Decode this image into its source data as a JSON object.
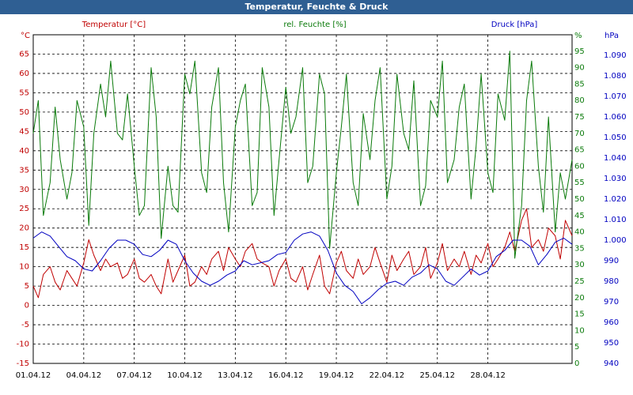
{
  "window": {
    "title": "Temperatur, Feuchte & Druck"
  },
  "colors": {
    "temperature": "#c00000",
    "humidity": "#0a7a0a",
    "pressure": "#0000c0",
    "titlebar": "#2f5f93"
  },
  "chart_data": {
    "type": "line",
    "title": "Temperatur, Feuchte & Druck",
    "grid": true,
    "axes": {
      "x": {
        "ticks": [
          "01.04.12",
          "04.04.12",
          "07.04.12",
          "10.04.12",
          "13.04.12",
          "16.04.12",
          "19.04.12",
          "22.04.12",
          "25.04.12",
          "28.04.12"
        ],
        "xlim": [
          0,
          32
        ]
      },
      "y_temperature": {
        "title": "Temperatur [°C]",
        "unit": "°C",
        "ylim": [
          -15,
          70
        ],
        "ticks": [
          "-15",
          "-10",
          "-5",
          "0",
          "5",
          "10",
          "15",
          "20",
          "25",
          "30",
          "35",
          "40",
          "45",
          "50",
          "55",
          "60",
          "65"
        ]
      },
      "y_humidity": {
        "title": "rel. Feuchte [%]",
        "unit": "%",
        "ylim": [
          0,
          100
        ],
        "ticks": [
          "0",
          "5",
          "10",
          "15",
          "20",
          "25",
          "30",
          "35",
          "40",
          "45",
          "50",
          "55",
          "60",
          "65",
          "70",
          "75",
          "80",
          "85",
          "90",
          "95"
        ]
      },
      "y_pressure": {
        "title": "Druck [hPa]",
        "unit": "hPa",
        "ylim": [
          0.94,
          1.1
        ],
        "ticks": [
          "940",
          "950",
          "960",
          "970",
          "980",
          "990",
          "1.000",
          "1.010",
          "1.020",
          "1.030",
          "1.040",
          "1.050",
          "1.060",
          "1.070",
          "1.080",
          "1.090"
        ]
      }
    },
    "series": [
      {
        "name": "Temperatur [°C]",
        "axis": "y_temperature",
        "x": [
          0,
          0.3,
          0.6,
          1.0,
          1.3,
          1.6,
          2.0,
          2.3,
          2.6,
          3.0,
          3.3,
          3.6,
          4.0,
          4.3,
          4.6,
          5.0,
          5.3,
          5.6,
          6.0,
          6.3,
          6.6,
          7.0,
          7.3,
          7.6,
          8.0,
          8.3,
          8.6,
          9.0,
          9.3,
          9.6,
          10.0,
          10.3,
          10.6,
          11.0,
          11.3,
          11.6,
          12.0,
          12.3,
          12.6,
          13.0,
          13.3,
          13.6,
          14.0,
          14.3,
          14.6,
          15.0,
          15.3,
          15.6,
          16.0,
          16.3,
          16.6,
          17.0,
          17.3,
          17.6,
          18.0,
          18.3,
          18.6,
          19.0,
          19.3,
          19.6,
          20.0,
          20.3,
          20.6,
          21.0,
          21.3,
          21.6,
          22.0,
          22.3,
          22.6,
          23.0,
          23.3,
          23.6,
          24.0,
          24.3,
          24.6,
          25.0,
          25.3,
          25.6,
          26.0,
          26.3,
          26.6,
          27.0,
          27.3,
          27.6,
          28.0,
          28.3,
          28.6,
          29.0,
          29.3,
          29.6,
          30.0,
          30.3,
          30.6,
          31.0,
          31.3,
          31.6,
          32.0
        ],
        "values": [
          5,
          2,
          8,
          10,
          6,
          4,
          9,
          7,
          5,
          11,
          17,
          13,
          9,
          12,
          10,
          11,
          7,
          8,
          12,
          7,
          6,
          8,
          5,
          3,
          12,
          6,
          9,
          13,
          5,
          6,
          10,
          8,
          12,
          14,
          9,
          15,
          12,
          10,
          14,
          16,
          12,
          11,
          10,
          5,
          9,
          12,
          7,
          6,
          10,
          4,
          8,
          13,
          5,
          3,
          11,
          14,
          9,
          7,
          12,
          8,
          10,
          15,
          11,
          6,
          13,
          9,
          12,
          14,
          8,
          10,
          15,
          7,
          11,
          16,
          9,
          12,
          10,
          14,
          8,
          13,
          11,
          16,
          10,
          12,
          15,
          19,
          14,
          22,
          25,
          15,
          17,
          14,
          20,
          18,
          12,
          22,
          18
        ]
      },
      {
        "name": "rel. Feuchte [%]",
        "axis": "y_humidity",
        "x": [
          0,
          0.3,
          0.6,
          1.0,
          1.3,
          1.6,
          2.0,
          2.3,
          2.6,
          3.0,
          3.3,
          3.6,
          4.0,
          4.3,
          4.6,
          5.0,
          5.3,
          5.6,
          6.0,
          6.3,
          6.6,
          7.0,
          7.3,
          7.6,
          8.0,
          8.3,
          8.6,
          9.0,
          9.3,
          9.6,
          10.0,
          10.3,
          10.6,
          11.0,
          11.3,
          11.6,
          12.0,
          12.3,
          12.6,
          13.0,
          13.3,
          13.6,
          14.0,
          14.3,
          14.6,
          15.0,
          15.3,
          15.6,
          16.0,
          16.3,
          16.6,
          17.0,
          17.3,
          17.6,
          18.0,
          18.3,
          18.6,
          19.0,
          19.3,
          19.6,
          20.0,
          20.3,
          20.6,
          21.0,
          21.3,
          21.6,
          22.0,
          22.3,
          22.6,
          23.0,
          23.3,
          23.6,
          24.0,
          24.3,
          24.6,
          25.0,
          25.3,
          25.6,
          26.0,
          26.3,
          26.6,
          27.0,
          27.3,
          27.6,
          28.0,
          28.3,
          28.6,
          29.0,
          29.3,
          29.6,
          30.0,
          30.3,
          30.6,
          31.0,
          31.3,
          31.6,
          32.0
        ],
        "values": [
          70,
          80,
          45,
          55,
          78,
          62,
          50,
          58,
          80,
          72,
          42,
          70,
          85,
          75,
          92,
          70,
          68,
          82,
          60,
          45,
          48,
          90,
          75,
          38,
          60,
          48,
          46,
          88,
          82,
          92,
          58,
          52,
          78,
          90,
          55,
          40,
          72,
          80,
          85,
          48,
          52,
          90,
          78,
          45,
          62,
          84,
          70,
          75,
          90,
          55,
          60,
          88,
          82,
          35,
          58,
          72,
          88,
          55,
          48,
          76,
          62,
          80,
          90,
          50,
          60,
          88,
          70,
          65,
          86,
          48,
          54,
          80,
          75,
          92,
          55,
          62,
          78,
          85,
          50,
          66,
          88,
          58,
          52,
          82,
          74,
          95,
          32,
          48,
          80,
          92,
          60,
          46,
          75,
          40,
          58,
          50,
          62
        ]
      },
      {
        "name": "Druck [hPa]",
        "axis": "y_pressure",
        "x": [
          0,
          0.5,
          1.0,
          1.5,
          2.0,
          2.5,
          3.0,
          3.5,
          4.0,
          4.5,
          5.0,
          5.5,
          6.0,
          6.5,
          7.0,
          7.5,
          8.0,
          8.5,
          9.0,
          9.5,
          10.0,
          10.5,
          11.0,
          11.5,
          12.0,
          12.5,
          13.0,
          13.5,
          14.0,
          14.5,
          15.0,
          15.5,
          16.0,
          16.5,
          17.0,
          17.5,
          18.0,
          18.5,
          19.0,
          19.5,
          20.0,
          20.5,
          21.0,
          21.5,
          22.0,
          22.5,
          23.0,
          23.5,
          24.0,
          24.5,
          25.0,
          25.5,
          26.0,
          26.5,
          27.0,
          27.5,
          28.0,
          28.5,
          29.0,
          29.5,
          30.0,
          30.5,
          31.0,
          31.5,
          32.0
        ],
        "values": [
          1.001,
          1.004,
          1.002,
          0.997,
          0.992,
          0.99,
          0.986,
          0.985,
          0.99,
          0.996,
          1.0,
          1.0,
          0.998,
          0.993,
          0.992,
          0.995,
          1.0,
          0.998,
          0.99,
          0.984,
          0.98,
          0.978,
          0.98,
          0.983,
          0.985,
          0.99,
          0.988,
          0.989,
          0.99,
          0.993,
          0.994,
          1.0,
          1.003,
          1.004,
          1.002,
          0.995,
          0.984,
          0.978,
          0.975,
          0.969,
          0.972,
          0.976,
          0.979,
          0.98,
          0.978,
          0.982,
          0.984,
          0.988,
          0.986,
          0.98,
          0.978,
          0.982,
          0.986,
          0.983,
          0.985,
          0.992,
          0.995,
          1.0,
          1.0,
          0.997,
          0.988,
          0.993,
          0.999,
          1.001,
          0.998
        ]
      }
    ]
  }
}
